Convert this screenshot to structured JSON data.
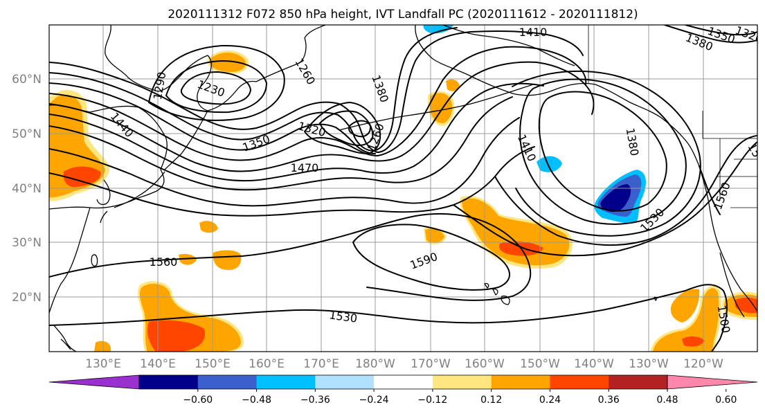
{
  "title": "2020111312 F072 850 hPa height, IVT Landfall PC (2020111612 - 2020111812)",
  "lat_labels": [
    "60°N",
    "50°N",
    "40°N",
    "30°N",
    "20°N"
  ],
  "lon_labels": [
    "130°E",
    "140°E",
    "150°E",
    "160°E",
    "170°E",
    "180°W",
    "170°W",
    "160°W",
    "150°W",
    "140°W",
    "130°W",
    "120°W"
  ],
  "contour_labels": [
    "1410",
    "1350",
    "1380",
    "1320",
    "1290",
    "1260",
    "1230",
    "1380",
    "1320",
    "1260",
    "1440",
    "1350",
    "1470",
    "1410",
    "1380",
    "1560",
    "1530",
    "1590",
    "1560",
    "1530",
    "1500",
    "15"
  ],
  "colorbar": {
    "ticks": [
      "−0.60",
      "−0.48",
      "−0.36",
      "−0.24",
      "−0.12",
      "0.12",
      "0.24",
      "0.36",
      "0.48",
      "0.60"
    ],
    "colors": [
      "#9b30d0",
      "#00008b",
      "#3a5fcd",
      "#00bfff",
      "#b0e2ff",
      "#ffffff",
      "#ffe680",
      "#ffa500",
      "#ff4500",
      "#b22222",
      "#ff88aa"
    ]
  },
  "field_colors": {
    "pos_light": "#ffe680",
    "pos_mid": "#ffa500",
    "pos_high": "#ff4500",
    "neg_light": "#b0e2ff",
    "neg_mid": "#00bfff",
    "neg_strong": "#3a5fcd",
    "neg_deep": "#00008b"
  }
}
